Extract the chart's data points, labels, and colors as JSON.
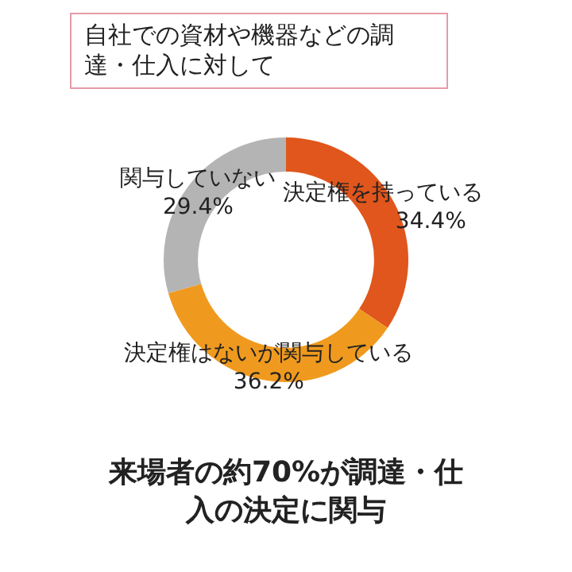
{
  "chart_data": {
    "type": "donut",
    "title": "自社での資材や機器などの調達・仕入に対して",
    "categories": [
      "決定権を持っている",
      "決定権はないが関与している",
      "関与していない"
    ],
    "values": [
      34.4,
      36.2,
      29.4
    ],
    "colors": [
      "#e0561c",
      "#ef9a1e",
      "#b4b4b4"
    ],
    "value_labels": [
      "34.4%",
      "36.2%",
      "29.4%"
    ],
    "legend": false,
    "annotations": [
      "来場者の約70%が調達・仕入の決定に関与"
    ]
  }
}
